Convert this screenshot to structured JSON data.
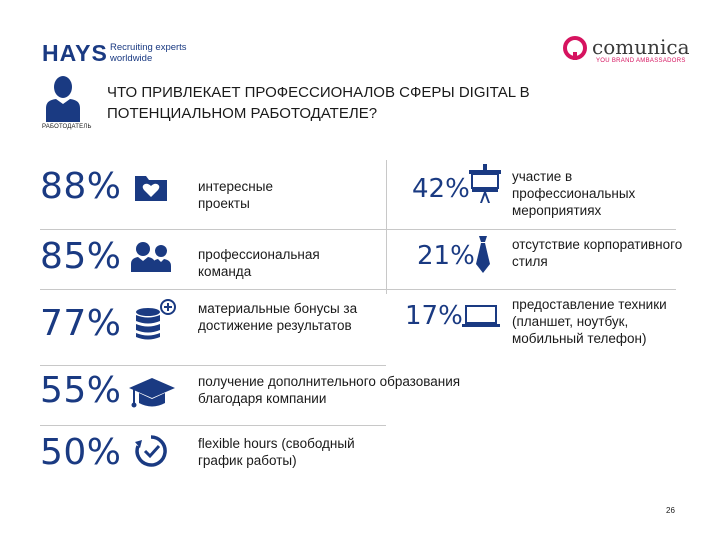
{
  "header": {
    "hays_word": "HAYS",
    "hays_tagline": "Recruiting experts worldwide",
    "comunica_word": "comunica",
    "comunica_tagline": "YOU BRAND AMBASSADORS",
    "employer_label": "РАБОТОДАТЕЛЬ",
    "title": "ЧТО ПРИВЛЕКАЕТ ПРОФЕССИОНАЛОВ СФЕРЫ DIGITAL В ПОТЕНЦИАЛЬНОМ РАБОТОДАТЕЛЕ?"
  },
  "left_items": [
    {
      "percent": "88%",
      "icon": "folder-heart-icon",
      "label": "интересные проекты"
    },
    {
      "percent": "85%",
      "icon": "team-icon",
      "label": "профессиональная команда"
    },
    {
      "percent": "77%",
      "icon": "coins-plus-icon",
      "label": "материальные бонусы за достижение результатов"
    },
    {
      "percent": "55%",
      "icon": "graduation-cap-icon",
      "label": "получение дополнительного образования благодаря компании"
    },
    {
      "percent": "50%",
      "icon": "clock-check-icon",
      "label_bold": "flexible hours",
      "label": "(свободный график работы)"
    }
  ],
  "right_items": [
    {
      "percent": "42%",
      "icon": "presentation-board-icon",
      "label": "участие в профессиональных мероприятиях"
    },
    {
      "percent": "21%",
      "icon": "tie-icon",
      "label": "отсутствие корпоративного стиля"
    },
    {
      "percent": "17%",
      "icon": "laptop-icon",
      "label": "предоставление техники (планшет, ноутбук, мобильный телефон)"
    }
  ],
  "colors": {
    "brand_blue": "#1a3a82",
    "comunica_pink": "#d6135f",
    "separator": "#c8c8c8"
  },
  "page_number": "26"
}
